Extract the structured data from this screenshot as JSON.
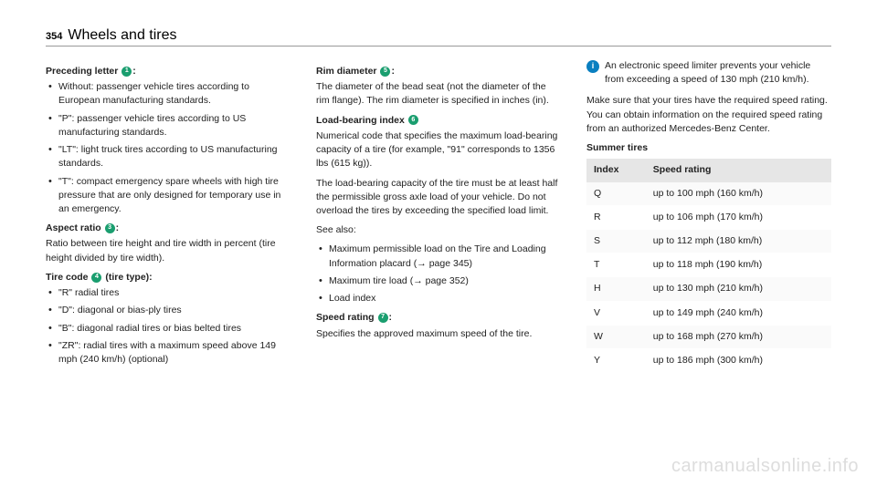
{
  "header": {
    "page": "354",
    "title": "Wheels and tires"
  },
  "col1": {
    "sec1": {
      "title_pre": "Preceding letter ",
      "title_num": "1",
      "title_post": ":",
      "items": [
        "Without: passenger vehicle tires according to European manufacturing standards.",
        "\"P\": passenger vehicle tires according to US manufacturing standards.",
        "\"LT\": light truck tires according to US manufacturing standards.",
        "\"T\": compact emergency spare wheels with high tire pressure that are only designed for temporary use in an emergency."
      ]
    },
    "sec2": {
      "title_pre": "Aspect ratio ",
      "title_num": "3",
      "title_post": ":",
      "body": "Ratio between tire height and tire width in percent (tire height divided by tire width)."
    },
    "sec3": {
      "title_pre": "Tire code ",
      "title_num": "4",
      "title_post": " (tire type):",
      "items": [
        "\"R\" radial tires",
        "\"D\": diagonal or bias-ply tires",
        "\"B\": diagonal radial tires or bias belted tires",
        "\"ZR\": radial tires with a maximum speed above 149 mph (240 km/h) (optional)"
      ]
    }
  },
  "col2": {
    "sec1": {
      "title_pre": "Rim diameter ",
      "title_num": "5",
      "title_post": ":",
      "body": "The diameter of the bead seat (not the diameter of the rim flange). The rim diameter is specified in inches (in)."
    },
    "sec2": {
      "title_pre": "Load-bearing index ",
      "title_num": "6",
      "body1": "Numerical code that specifies the maximum load-bearing capacity of a tire (for example, \"91\" corresponds to 1356 lbs (615 kg)).",
      "body2": "The load-bearing capacity of the tire must be at least half the permissible gross axle load of your vehicle. Do not overload the tires by exceeding the specified load limit.",
      "body3": "See also:",
      "items": [
        "Maximum permissible load on the Tire and Loading Information placard (→ page 345)",
        "Maximum tire load (→ page 352)",
        "Load index"
      ]
    },
    "sec3": {
      "title_pre": "Speed rating ",
      "title_num": "7",
      "title_post": ":",
      "body": "Specifies the approved maximum speed of the tire."
    }
  },
  "col3": {
    "info": "An electronic speed limiter prevents your vehicle from exceeding a speed of 130 mph (210 km/h).",
    "body": "Make sure that your tires have the required speed rating. You can obtain information on the required speed rating from an authorized Mercedes-Benz Center.",
    "table_title": "Summer tires",
    "table": {
      "headers": [
        "Index",
        "Speed rating"
      ],
      "rows": [
        [
          "Q",
          "up to 100 mph (160 km/h)"
        ],
        [
          "R",
          "up to 106 mph (170 km/h)"
        ],
        [
          "S",
          "up to 112 mph (180 km/h)"
        ],
        [
          "T",
          "up to 118 mph (190 km/h)"
        ],
        [
          "H",
          "up to 130 mph (210 km/h)"
        ],
        [
          "V",
          "up to 149 mph (240 km/h)"
        ],
        [
          "W",
          "up to 168 mph (270 km/h)"
        ],
        [
          "Y",
          "up to 186 mph (300 km/h)"
        ]
      ]
    }
  },
  "watermark": "carmanualsonline.info",
  "colors": {
    "circle": "#1a9e6f",
    "info": "#0a7fc0",
    "header_gray": "#e6e6e6"
  }
}
